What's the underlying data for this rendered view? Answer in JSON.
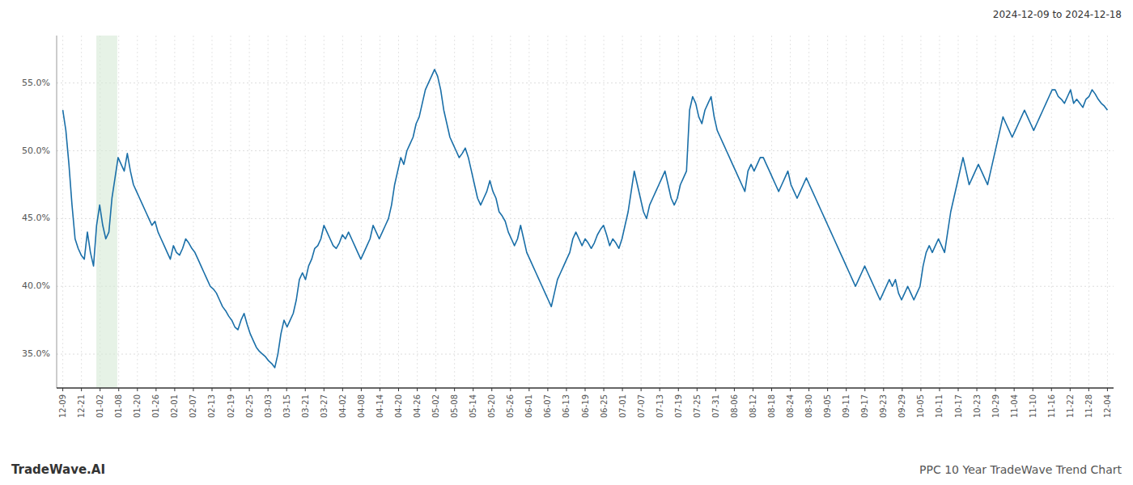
{
  "chart_data": {
    "type": "line",
    "title": "2024-12-09 to 2024-12-18",
    "annotations": [
      "TradeWave.AI",
      "PPC 10 Year TradeWave Trend Chart"
    ],
    "color": "#1a6fa8",
    "grid": true,
    "line_style": "solid",
    "band": {
      "start": 10.912,
      "end": 17.732,
      "color": "#d6ead6"
    },
    "ylim": [
      32.5,
      58.5
    ],
    "yticks": [
      {
        "value": 35,
        "label": "35.0%"
      },
      {
        "value": 40,
        "label": "40.0%"
      },
      {
        "value": 45,
        "label": "45.0%"
      },
      {
        "value": 50,
        "label": "50.0%"
      },
      {
        "value": 55,
        "label": "55.0%"
      }
    ],
    "xlim": [
      -2,
      342
    ],
    "xticks": [
      {
        "value": 0,
        "label": "12-09"
      },
      {
        "value": 6.071428571428571,
        "label": "12-21"
      },
      {
        "value": 12.142857142857142,
        "label": "01-02"
      },
      {
        "value": 18.214285714285715,
        "label": "01-08"
      },
      {
        "value": 24.285714285714285,
        "label": "01-20"
      },
      {
        "value": 30.357142857142858,
        "label": "01-26"
      },
      {
        "value": 36.42857142857143,
        "label": "02-01"
      },
      {
        "value": 42.5,
        "label": "02-07"
      },
      {
        "value": 48.57142857142857,
        "label": "02-13"
      },
      {
        "value": 54.642857142857146,
        "label": "02-19"
      },
      {
        "value": 60.714285714285715,
        "label": "02-25"
      },
      {
        "value": 66.78571428571429,
        "label": "03-03"
      },
      {
        "value": 72.85714285714286,
        "label": "03-15"
      },
      {
        "value": 78.92857142857143,
        "label": "03-21"
      },
      {
        "value": 85,
        "label": "03-27"
      },
      {
        "value": 91.07142857142857,
        "label": "04-02"
      },
      {
        "value": 97.14285714285714,
        "label": "04-08"
      },
      {
        "value": 103.21428571428571,
        "label": "04-14"
      },
      {
        "value": 109.28571428571429,
        "label": "04-20"
      },
      {
        "value": 115.35714285714286,
        "label": "04-26"
      },
      {
        "value": 121.42857142857143,
        "label": "05-02"
      },
      {
        "value": 127.5,
        "label": "05-08"
      },
      {
        "value": 133.57142857142858,
        "label": "05-14"
      },
      {
        "value": 139.64285714285714,
        "label": "05-20"
      },
      {
        "value": 145.71428571428572,
        "label": "05-26"
      },
      {
        "value": 151.78571428571428,
        "label": "06-01"
      },
      {
        "value": 157.85714285714286,
        "label": "06-07"
      },
      {
        "value": 163.92857142857142,
        "label": "06-13"
      },
      {
        "value": 170,
        "label": "06-19"
      },
      {
        "value": 176.07142857142858,
        "label": "06-25"
      },
      {
        "value": 182.14285714285714,
        "label": "07-01"
      },
      {
        "value": 188.21428571428572,
        "label": "07-07"
      },
      {
        "value": 194.28571428571428,
        "label": "07-13"
      },
      {
        "value": 200.35714285714286,
        "label": "07-19"
      },
      {
        "value": 206.42857142857142,
        "label": "07-25"
      },
      {
        "value": 212.5,
        "label": "07-31"
      },
      {
        "value": 218.57142857142858,
        "label": "08-06"
      },
      {
        "value": 224.64285714285714,
        "label": "08-12"
      },
      {
        "value": 230.71428571428572,
        "label": "08-18"
      },
      {
        "value": 236.78571428571428,
        "label": "08-24"
      },
      {
        "value": 242.85714285714286,
        "label": "08-30"
      },
      {
        "value": 248.92857142857142,
        "label": "09-05"
      },
      {
        "value": 255,
        "label": "09-11"
      },
      {
        "value": 261.0714285714286,
        "label": "09-17"
      },
      {
        "value": 267.14285714285717,
        "label": "09-23"
      },
      {
        "value": 273.2142857142857,
        "label": "09-29"
      },
      {
        "value": 279.2857142857143,
        "label": "10-05"
      },
      {
        "value": 285.35714285714283,
        "label": "10-11"
      },
      {
        "value": 291.42857142857144,
        "label": "10-17"
      },
      {
        "value": 297.5,
        "label": "10-23"
      },
      {
        "value": 303.57142857142856,
        "label": "10-29"
      },
      {
        "value": 309.64285714285717,
        "label": "11-04"
      },
      {
        "value": 315.7142857142857,
        "label": "11-10"
      },
      {
        "value": 321.7857142857143,
        "label": "11-16"
      },
      {
        "value": 327.85714285714283,
        "label": "11-22"
      },
      {
        "value": 333.92857142857144,
        "label": "11-28"
      },
      {
        "value": 340,
        "label": "12-04"
      }
    ],
    "values": [
      53.0,
      51.5,
      49.0,
      46.0,
      43.5,
      42.8,
      42.3,
      42.0,
      44.0,
      42.5,
      41.5,
      44.5,
      46.0,
      44.5,
      43.5,
      44.0,
      46.5,
      48.0,
      49.5,
      49.0,
      48.5,
      49.8,
      48.5,
      47.5,
      47.0,
      46.5,
      46.0,
      45.5,
      45.0,
      44.5,
      44.8,
      44.0,
      43.5,
      43.0,
      42.5,
      42.0,
      43.0,
      42.5,
      42.3,
      42.8,
      43.5,
      43.2,
      42.8,
      42.5,
      42.0,
      41.5,
      41.0,
      40.5,
      40.0,
      39.8,
      39.5,
      39.0,
      38.5,
      38.2,
      37.8,
      37.5,
      37.0,
      36.8,
      37.5,
      38.0,
      37.2,
      36.5,
      36.0,
      35.5,
      35.2,
      35.0,
      34.8,
      34.5,
      34.3,
      34.0,
      35.0,
      36.5,
      37.5,
      37.0,
      37.5,
      38.0,
      39.0,
      40.5,
      41.0,
      40.5,
      41.5,
      42.0,
      42.8,
      43.0,
      43.5,
      44.5,
      44.0,
      43.5,
      43.0,
      42.8,
      43.2,
      43.8,
      43.5,
      44.0,
      43.5,
      43.0,
      42.5,
      42.0,
      42.5,
      43.0,
      43.5,
      44.5,
      44.0,
      43.5,
      44.0,
      44.5,
      45.0,
      46.0,
      47.5,
      48.5,
      49.5,
      49.0,
      50.0,
      50.5,
      51.0,
      52.0,
      52.5,
      53.5,
      54.5,
      55.0,
      55.5,
      56.0,
      55.5,
      54.5,
      53.0,
      52.0,
      51.0,
      50.5,
      50.0,
      49.5,
      49.8,
      50.2,
      49.5,
      48.5,
      47.5,
      46.5,
      46.0,
      46.5,
      47.0,
      47.8,
      47.0,
      46.5,
      45.5,
      45.2,
      44.8,
      44.0,
      43.5,
      43.0,
      43.5,
      44.5,
      43.5,
      42.5,
      42.0,
      41.5,
      41.0,
      40.5,
      40.0,
      39.5,
      39.0,
      38.5,
      39.5,
      40.5,
      41.0,
      41.5,
      42.0,
      42.5,
      43.5,
      44.0,
      43.5,
      43.0,
      43.5,
      43.2,
      42.8,
      43.2,
      43.8,
      44.2,
      44.5,
      43.8,
      43.0,
      43.5,
      43.2,
      42.8,
      43.5,
      44.5,
      45.5,
      47.0,
      48.5,
      47.5,
      46.5,
      45.5,
      45.0,
      46.0,
      46.5,
      47.0,
      47.5,
      48.0,
      48.5,
      47.5,
      46.5,
      46.0,
      46.5,
      47.5,
      48.0,
      48.5,
      53.0,
      54.0,
      53.5,
      52.5,
      52.0,
      53.0,
      53.5,
      54.0,
      52.5,
      51.5,
      51.0,
      50.5,
      50.0,
      49.5,
      49.0,
      48.5,
      48.0,
      47.5,
      47.0,
      48.5,
      49.0,
      48.5,
      49.0,
      49.5,
      49.5,
      49.0,
      48.5,
      48.0,
      47.5,
      47.0,
      47.5,
      48.0,
      48.5,
      47.5,
      47.0,
      46.5,
      47.0,
      47.5,
      48.0,
      47.5,
      47.0,
      46.5,
      46.0,
      45.5,
      45.0,
      44.5,
      44.0,
      43.5,
      43.0,
      42.5,
      42.0,
      41.5,
      41.0,
      40.5,
      40.0,
      40.5,
      41.0,
      41.5,
      41.0,
      40.5,
      40.0,
      39.5,
      39.0,
      39.5,
      40.0,
      40.5,
      40.0,
      40.5,
      39.5,
      39.0,
      39.5,
      40.0,
      39.5,
      39.0,
      39.5,
      40.0,
      41.5,
      42.5,
      43.0,
      42.5,
      43.0,
      43.5,
      43.0,
      42.5,
      44.0,
      45.5,
      46.5,
      47.5,
      48.5,
      49.5,
      48.5,
      47.5,
      48.0,
      48.5,
      49.0,
      48.5,
      48.0,
      47.5,
      48.5,
      49.5,
      50.5,
      51.5,
      52.5,
      52.0,
      51.5,
      51.0,
      51.5,
      52.0,
      52.5,
      53.0,
      52.5,
      52.0,
      51.5,
      52.0,
      52.5,
      53.0,
      53.5,
      54.0,
      54.5,
      54.5,
      54.0,
      53.8,
      53.5,
      54.0,
      54.5,
      53.5,
      53.8,
      53.5,
      53.2,
      53.8,
      54.0,
      54.5,
      54.2,
      53.8,
      53.5,
      53.3,
      53.0
    ]
  }
}
